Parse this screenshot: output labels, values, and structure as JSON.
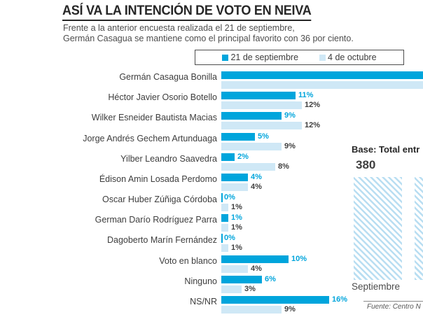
{
  "header": {
    "title": "ASÍ VA LA INTENCIÓN DE VOTO EN NEIVA",
    "subtitle_line1": "Frente a la anterior encuesta realizada el 21 de septiembre,",
    "subtitle_line2": "Germán Casagua se mantiene como el principal favorito con 36 por ciento."
  },
  "legend": {
    "items": [
      {
        "label": "21 de septiembre",
        "color": "#00a5dc"
      },
      {
        "label": "4 de octubre",
        "color": "#cfe8f6"
      }
    ]
  },
  "colors": {
    "sept_bar": "#00a5dc",
    "oct_bar": "#cfe8f6",
    "sept_label": "#00a5dc",
    "oct_label": "#3f3f3f",
    "hatch_stripe": "#b9def2"
  },
  "chart_data": [
    {
      "type": "bar",
      "orientation": "horizontal",
      "unit": "percent",
      "legend_position": "top",
      "first_row_bars_cut_off": true,
      "categories": [
        "Germán Casagua Bonilla",
        "Héctor Javier Osorio Botello",
        "Wilker Esneider Bautista Macias",
        "Jorge Andrés Gechem Artunduaga",
        "Yilber Leandro Saavedra",
        "Édison Amin Losada Perdomo",
        "Oscar Huber Zúñiga Córdoba",
        "German Darío Rodríguez Parra",
        "Dagoberto Marín Fernández",
        "Voto en blanco",
        "Ninguno",
        "NS/NR"
      ],
      "series": [
        {
          "name": "21 de septiembre",
          "values": [
            36,
            11,
            9,
            5,
            2,
            4,
            0,
            1,
            0,
            10,
            6,
            16
          ]
        },
        {
          "name": "4 de octubre",
          "values": [
            null,
            12,
            12,
            9,
            8,
            4,
            1,
            1,
            1,
            4,
            3,
            9
          ]
        }
      ]
    },
    {
      "type": "bar",
      "title": "Base: Total entr",
      "categories": [
        "Septiembre",
        ""
      ],
      "values": [
        380,
        null
      ],
      "second_column_cut_off": true
    }
  ],
  "source": "Fuente: Centro N"
}
